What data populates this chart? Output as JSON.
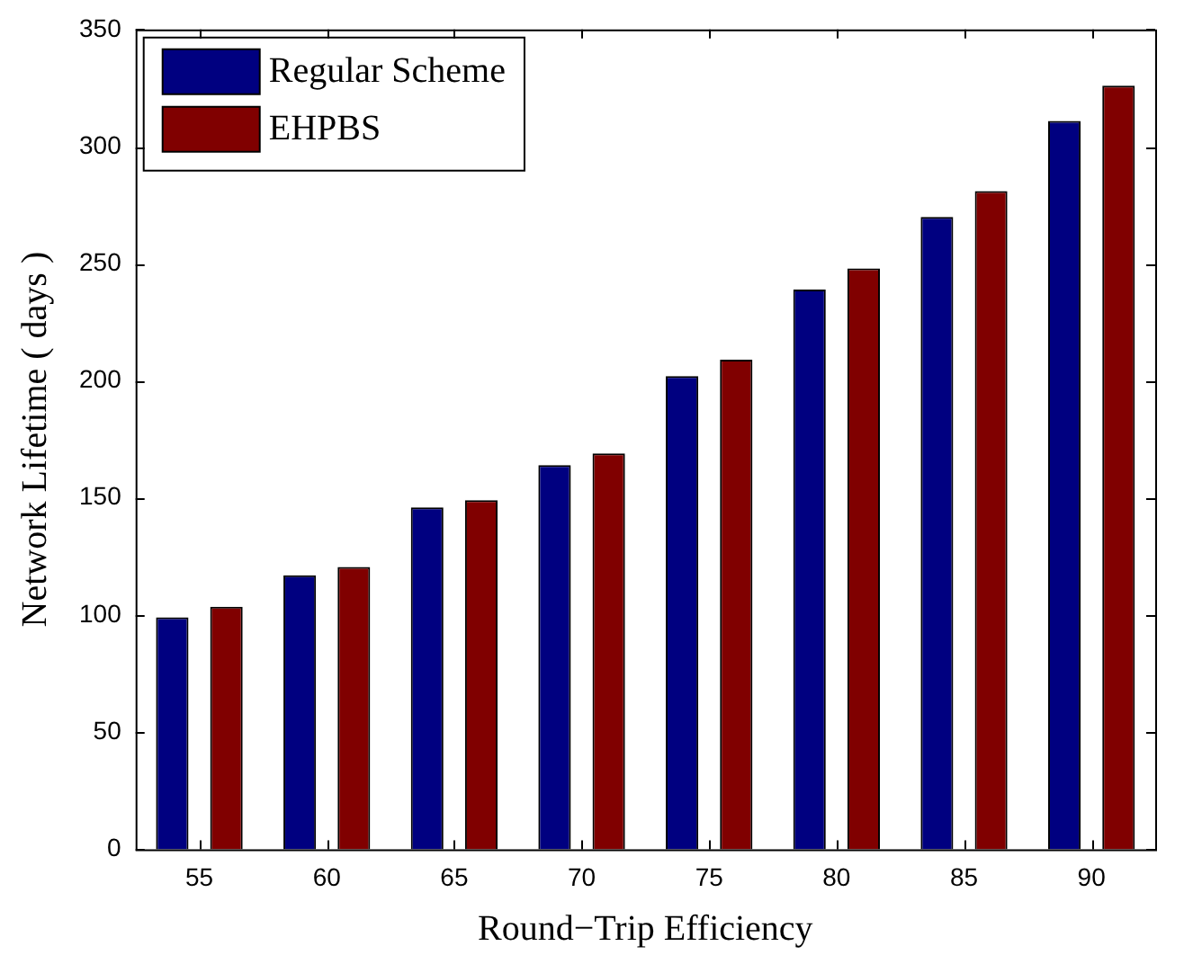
{
  "chart_data": {
    "type": "bar",
    "xlabel": "Round−Trip Efficiency",
    "ylabel": "Network Lifetime ( days )",
    "categories": [
      "55",
      "60",
      "65",
      "70",
      "75",
      "80",
      "85",
      "90"
    ],
    "series": [
      {
        "name": "Regular Scheme",
        "color": "#000080",
        "values": [
          99,
          117,
          146,
          164,
          202,
          239,
          270,
          311
        ]
      },
      {
        "name": "EHPBS",
        "color": "#800000",
        "values": [
          103.5,
          120.5,
          149,
          169,
          209,
          248,
          281,
          326
        ]
      }
    ],
    "ylim": [
      0,
      350
    ],
    "yticks": [
      0,
      50,
      100,
      150,
      200,
      250,
      300,
      350
    ],
    "grid": false,
    "legend": "top left"
  }
}
